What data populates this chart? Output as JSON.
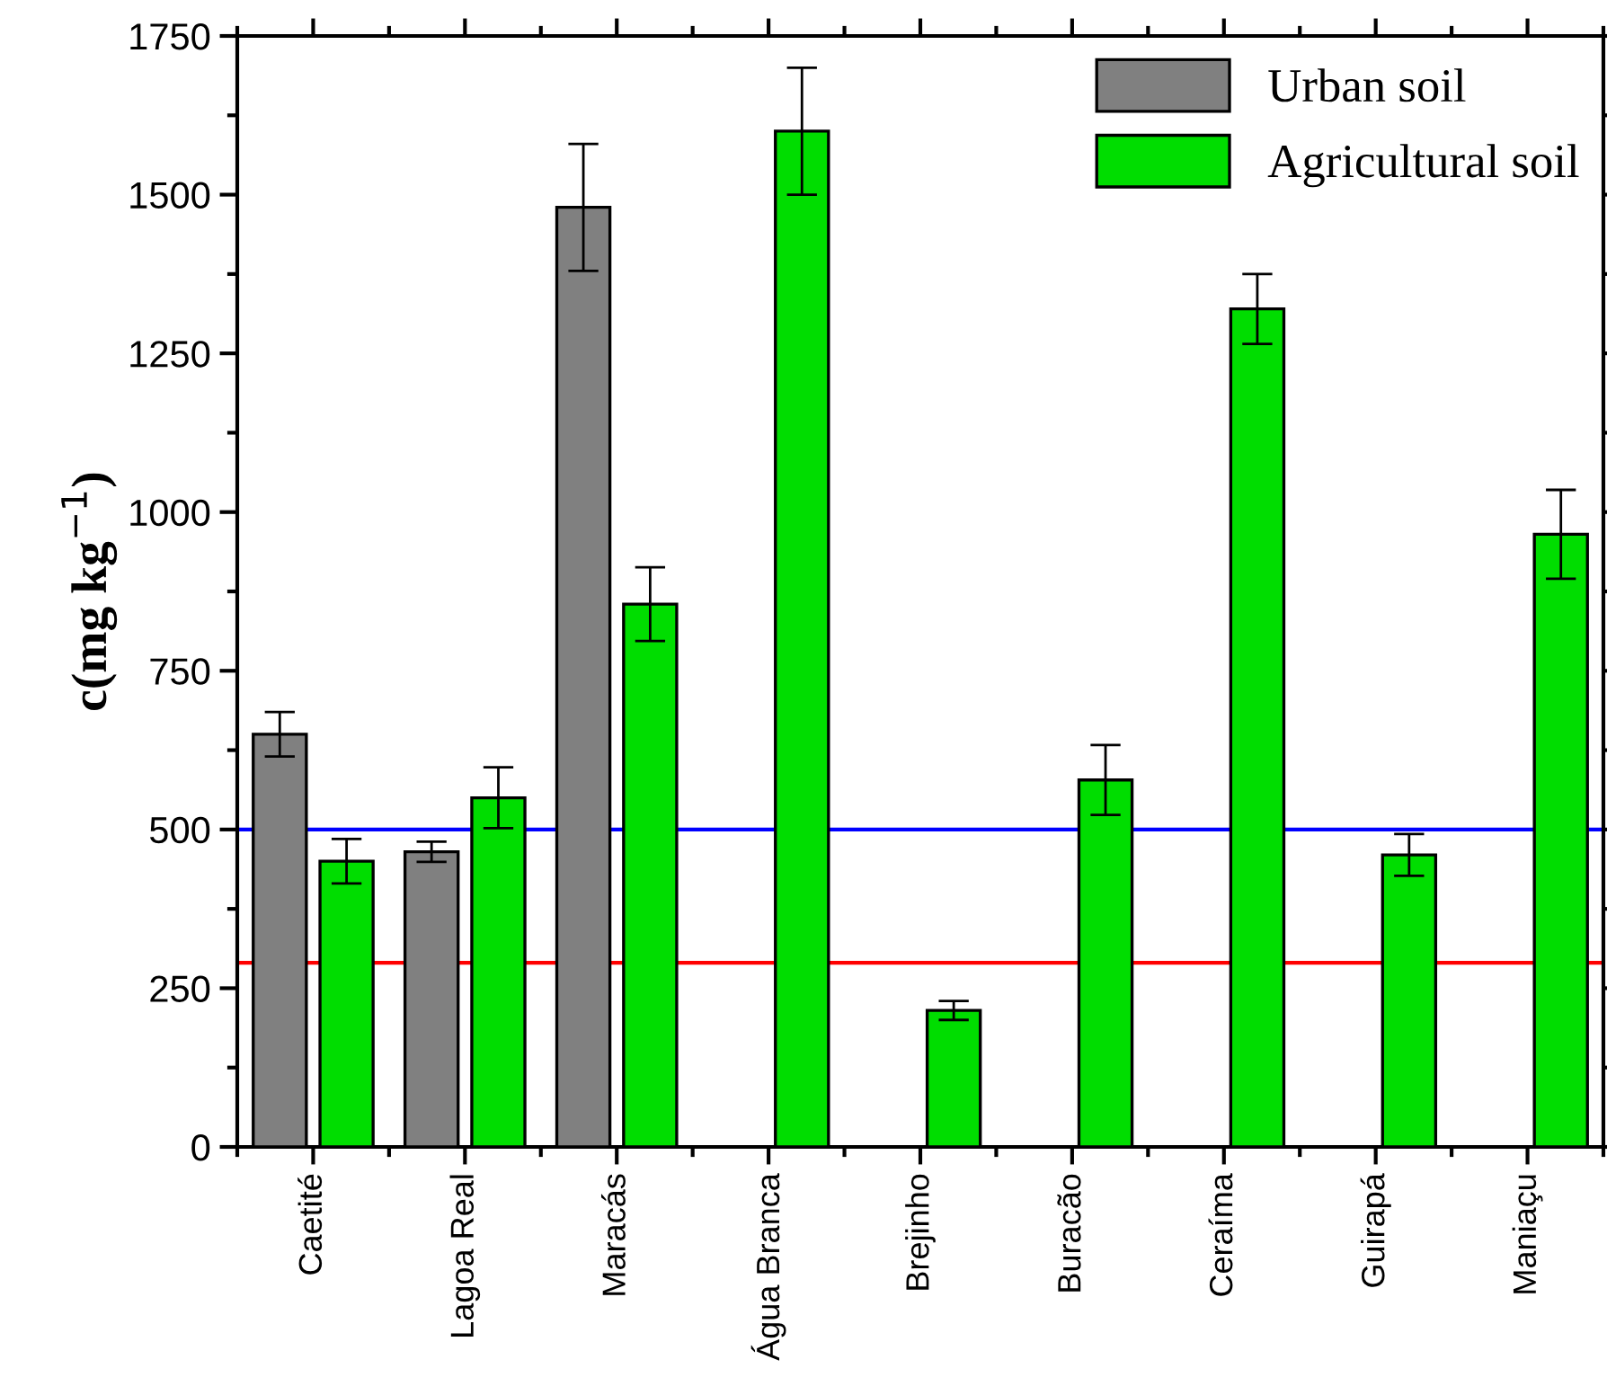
{
  "chart_data": {
    "type": "bar",
    "ylabel": "c(mg kg$^{−1}$)",
    "categories": [
      "Caetité",
      "Lagoa Real",
      "Maracás",
      "Água Branca",
      "Brejinho",
      "Buracão",
      "Ceraíma",
      "Guirapá",
      "Maniaçu"
    ],
    "series": [
      {
        "name": "Urban soil",
        "color": "#808080",
        "values": [
          650,
          465,
          1480,
          null,
          null,
          null,
          null,
          null,
          null
        ],
        "errors": [
          35,
          16,
          100,
          null,
          null,
          null,
          null,
          null,
          null
        ]
      },
      {
        "name": "Agricultural soil",
        "color": "#00dd00",
        "values": [
          450,
          550,
          855,
          1600,
          215,
          578,
          1320,
          460,
          965
        ],
        "errors": [
          35,
          48,
          58,
          100,
          15,
          55,
          55,
          33,
          70
        ]
      }
    ],
    "ylim": [
      0,
      1750
    ],
    "yticks": [
      0,
      250,
      500,
      750,
      1000,
      1250,
      1500,
      1750
    ],
    "ref_lines": [
      {
        "axis": "y",
        "value": 500,
        "color": "#0000ff"
      },
      {
        "axis": "y",
        "value": 290,
        "color": "#ff0000"
      }
    ],
    "legend": "top right",
    "grid": false
  }
}
